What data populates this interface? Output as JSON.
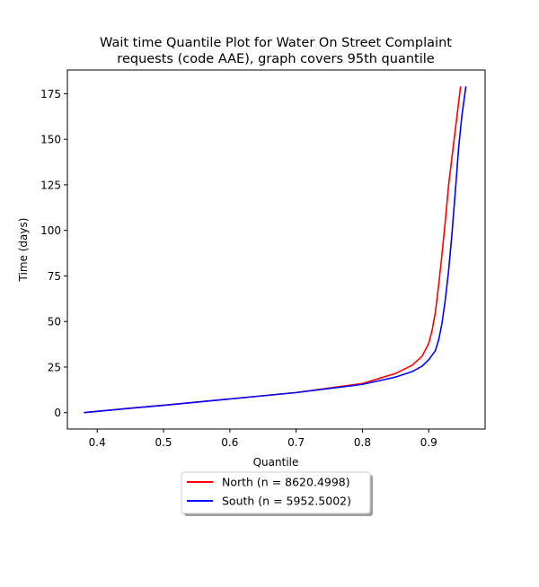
{
  "chart_data": {
    "type": "line",
    "title": "Wait time Quantile Plot for Water On Street Complaint",
    "subtitle": "requests (code AAE), graph covers 95th quantile",
    "xlabel": "Quantile",
    "ylabel": "Time (days)",
    "xlim": [
      0.355,
      0.985
    ],
    "ylim": [
      -9,
      188
    ],
    "xticks": [
      0.4,
      0.5,
      0.6,
      0.7,
      0.8,
      0.9
    ],
    "xtick_labels": [
      "0.4",
      "0.5",
      "0.6",
      "0.7",
      "0.8",
      "0.9"
    ],
    "yticks": [
      0,
      25,
      50,
      75,
      100,
      125,
      150,
      175
    ],
    "ytick_labels": [
      "0",
      "25",
      "50",
      "75",
      "100",
      "125",
      "150",
      "175"
    ],
    "grid": false,
    "legend_position": "below-center",
    "series": [
      {
        "name": "North (n = 8620.4998)",
        "color": "#ff0000",
        "x": [
          0.38,
          0.45,
          0.5,
          0.6,
          0.7,
          0.8,
          0.85,
          0.875,
          0.89,
          0.9,
          0.905,
          0.91,
          0.915,
          0.92,
          0.925,
          0.93,
          0.94,
          0.948
        ],
        "y": [
          0,
          2.4,
          4,
          7.5,
          11,
          16,
          21.5,
          26,
          31,
          38,
          45,
          55,
          70,
          87,
          105,
          125,
          155,
          179
        ]
      },
      {
        "name": "South (n = 5952.5002)",
        "color": "#0000ff",
        "x": [
          0.38,
          0.45,
          0.5,
          0.6,
          0.7,
          0.8,
          0.85,
          0.875,
          0.89,
          0.9,
          0.91,
          0.915,
          0.92,
          0.925,
          0.93,
          0.935,
          0.94,
          0.945,
          0.95,
          0.956
        ],
        "y": [
          0,
          2.4,
          4,
          7.5,
          11,
          15.5,
          19.5,
          22.5,
          25.5,
          29,
          34,
          40,
          49,
          62,
          78,
          98,
          121,
          145,
          163,
          179
        ]
      }
    ]
  }
}
